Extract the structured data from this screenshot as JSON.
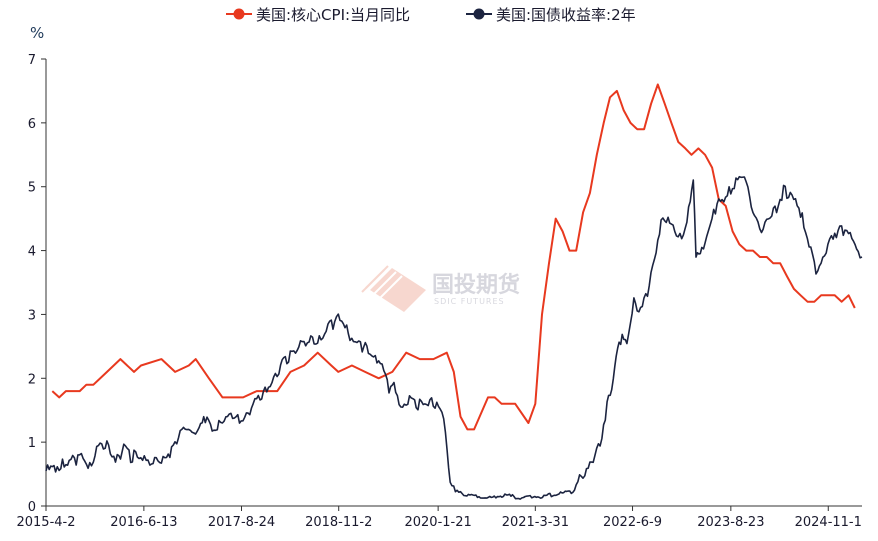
{
  "chart_data": {
    "type": "line",
    "ylabel": "%",
    "ylim": [
      0,
      7
    ],
    "yticks": [
      "0",
      "1",
      "2",
      "3",
      "4",
      "5",
      "6",
      "7"
    ],
    "xlim": [
      "2015-04-02",
      "2025-04-01"
    ],
    "xticks": [
      {
        "label": "2015-4-2",
        "date": "2015-04-02"
      },
      {
        "label": "2016-6-13",
        "date": "2016-06-13"
      },
      {
        "label": "2017-8-24",
        "date": "2017-08-24"
      },
      {
        "label": "2018-11-2",
        "date": "2018-11-02"
      },
      {
        "label": "2020-1-21",
        "date": "2020-01-21"
      },
      {
        "label": "2021-3-31",
        "date": "2021-03-31"
      },
      {
        "label": "2022-6-9",
        "date": "2022-06-09"
      },
      {
        "label": "2023-8-23",
        "date": "2023-08-23"
      },
      {
        "label": "2024-11-1",
        "date": "2024-11-01"
      }
    ],
    "legend_position": "top-center",
    "grid": false,
    "series": [
      {
        "name": "美国:核心CPI:当月同比",
        "color": "#e8391f",
        "points": [
          [
            "2015-04-30",
            1.8
          ],
          [
            "2015-05-31",
            1.7
          ],
          [
            "2015-06-30",
            1.8
          ],
          [
            "2015-08-31",
            1.8
          ],
          [
            "2015-09-30",
            1.9
          ],
          [
            "2015-10-31",
            1.9
          ],
          [
            "2015-12-31",
            2.1
          ],
          [
            "2016-02-29",
            2.3
          ],
          [
            "2016-04-30",
            2.1
          ],
          [
            "2016-05-31",
            2.2
          ],
          [
            "2016-08-31",
            2.3
          ],
          [
            "2016-10-31",
            2.1
          ],
          [
            "2016-12-31",
            2.2
          ],
          [
            "2017-01-31",
            2.3
          ],
          [
            "2017-03-31",
            2.0
          ],
          [
            "2017-05-31",
            1.7
          ],
          [
            "2017-08-31",
            1.7
          ],
          [
            "2017-10-31",
            1.8
          ],
          [
            "2017-12-31",
            1.8
          ],
          [
            "2018-01-31",
            1.8
          ],
          [
            "2018-03-31",
            2.1
          ],
          [
            "2018-05-31",
            2.2
          ],
          [
            "2018-07-31",
            2.4
          ],
          [
            "2018-09-30",
            2.2
          ],
          [
            "2018-10-31",
            2.1
          ],
          [
            "2018-12-31",
            2.2
          ],
          [
            "2019-02-28",
            2.1
          ],
          [
            "2019-04-30",
            2.0
          ],
          [
            "2019-06-30",
            2.1
          ],
          [
            "2019-08-31",
            2.4
          ],
          [
            "2019-10-31",
            2.3
          ],
          [
            "2019-12-31",
            2.3
          ],
          [
            "2020-02-29",
            2.4
          ],
          [
            "2020-03-31",
            2.1
          ],
          [
            "2020-04-30",
            1.4
          ],
          [
            "2020-05-31",
            1.2
          ],
          [
            "2020-06-30",
            1.2
          ],
          [
            "2020-08-31",
            1.7
          ],
          [
            "2020-09-30",
            1.7
          ],
          [
            "2020-10-31",
            1.6
          ],
          [
            "2020-12-31",
            1.6
          ],
          [
            "2021-02-28",
            1.3
          ],
          [
            "2021-03-31",
            1.6
          ],
          [
            "2021-04-30",
            3.0
          ],
          [
            "2021-05-31",
            3.8
          ],
          [
            "2021-06-30",
            4.5
          ],
          [
            "2021-07-31",
            4.3
          ],
          [
            "2021-08-31",
            4.0
          ],
          [
            "2021-09-30",
            4.0
          ],
          [
            "2021-10-31",
            4.6
          ],
          [
            "2021-11-30",
            4.9
          ],
          [
            "2021-12-31",
            5.5
          ],
          [
            "2022-01-31",
            6.0
          ],
          [
            "2022-02-28",
            6.4
          ],
          [
            "2022-03-31",
            6.5
          ],
          [
            "2022-04-30",
            6.2
          ],
          [
            "2022-05-31",
            6.0
          ],
          [
            "2022-06-30",
            5.9
          ],
          [
            "2022-07-31",
            5.9
          ],
          [
            "2022-08-31",
            6.3
          ],
          [
            "2022-09-30",
            6.6
          ],
          [
            "2022-10-31",
            6.3
          ],
          [
            "2022-11-30",
            6.0
          ],
          [
            "2022-12-31",
            5.7
          ],
          [
            "2023-01-31",
            5.6
          ],
          [
            "2023-02-28",
            5.5
          ],
          [
            "2023-03-31",
            5.6
          ],
          [
            "2023-04-30",
            5.5
          ],
          [
            "2023-05-31",
            5.3
          ],
          [
            "2023-06-30",
            4.8
          ],
          [
            "2023-07-31",
            4.7
          ],
          [
            "2023-08-31",
            4.3
          ],
          [
            "2023-09-30",
            4.1
          ],
          [
            "2023-10-31",
            4.0
          ],
          [
            "2023-11-30",
            4.0
          ],
          [
            "2023-12-31",
            3.9
          ],
          [
            "2024-01-31",
            3.9
          ],
          [
            "2024-02-29",
            3.8
          ],
          [
            "2024-03-31",
            3.8
          ],
          [
            "2024-04-30",
            3.6
          ],
          [
            "2024-05-31",
            3.4
          ],
          [
            "2024-06-30",
            3.3
          ],
          [
            "2024-07-31",
            3.2
          ],
          [
            "2024-08-31",
            3.2
          ],
          [
            "2024-09-30",
            3.3
          ],
          [
            "2024-10-31",
            3.3
          ],
          [
            "2024-11-30",
            3.3
          ],
          [
            "2024-12-31",
            3.2
          ],
          [
            "2025-01-31",
            3.3
          ],
          [
            "2025-02-28",
            3.1
          ]
        ]
      },
      {
        "name": "美国:国债收益率:2年",
        "color": "#1c2440",
        "points": [
          [
            "2015-04-02",
            0.55
          ],
          [
            "2015-05-15",
            0.6
          ],
          [
            "2015-06-15",
            0.68
          ],
          [
            "2015-07-15",
            0.7
          ],
          [
            "2015-08-15",
            0.72
          ],
          [
            "2015-09-15",
            0.78
          ],
          [
            "2015-10-15",
            0.62
          ],
          [
            "2015-11-15",
            0.85
          ],
          [
            "2015-12-15",
            0.98
          ],
          [
            "2016-01-15",
            0.88
          ],
          [
            "2016-02-15",
            0.72
          ],
          [
            "2016-03-15",
            0.92
          ],
          [
            "2016-04-15",
            0.75
          ],
          [
            "2016-05-15",
            0.82
          ],
          [
            "2016-06-15",
            0.75
          ],
          [
            "2016-07-10",
            0.6
          ],
          [
            "2016-08-15",
            0.72
          ],
          [
            "2016-09-15",
            0.78
          ],
          [
            "2016-10-15",
            0.85
          ],
          [
            "2016-11-15",
            1.05
          ],
          [
            "2016-12-15",
            1.22
          ],
          [
            "2017-01-15",
            1.2
          ],
          [
            "2017-02-15",
            1.2
          ],
          [
            "2017-03-15",
            1.35
          ],
          [
            "2017-04-15",
            1.22
          ],
          [
            "2017-05-15",
            1.3
          ],
          [
            "2017-06-15",
            1.35
          ],
          [
            "2017-07-15",
            1.38
          ],
          [
            "2017-08-15",
            1.33
          ],
          [
            "2017-09-15",
            1.42
          ],
          [
            "2017-10-15",
            1.58
          ],
          [
            "2017-11-15",
            1.72
          ],
          [
            "2017-12-15",
            1.85
          ],
          [
            "2018-01-15",
            2.0
          ],
          [
            "2018-02-15",
            2.2
          ],
          [
            "2018-03-15",
            2.3
          ],
          [
            "2018-04-15",
            2.45
          ],
          [
            "2018-05-15",
            2.52
          ],
          [
            "2018-06-15",
            2.55
          ],
          [
            "2018-07-15",
            2.62
          ],
          [
            "2018-08-15",
            2.62
          ],
          [
            "2018-09-15",
            2.78
          ],
          [
            "2018-10-15",
            2.88
          ],
          [
            "2018-11-08",
            2.96
          ],
          [
            "2018-12-15",
            2.72
          ],
          [
            "2019-01-15",
            2.55
          ],
          [
            "2019-02-15",
            2.5
          ],
          [
            "2019-03-15",
            2.45
          ],
          [
            "2019-04-15",
            2.35
          ],
          [
            "2019-05-15",
            2.2
          ],
          [
            "2019-06-15",
            1.85
          ],
          [
            "2019-07-15",
            1.85
          ],
          [
            "2019-08-15",
            1.5
          ],
          [
            "2019-09-15",
            1.72
          ],
          [
            "2019-10-15",
            1.58
          ],
          [
            "2019-11-15",
            1.62
          ],
          [
            "2019-12-15",
            1.62
          ],
          [
            "2020-01-15",
            1.58
          ],
          [
            "2020-02-15",
            1.42
          ],
          [
            "2020-03-01",
            0.95
          ],
          [
            "2020-03-15",
            0.35
          ],
          [
            "2020-04-15",
            0.22
          ],
          [
            "2020-05-15",
            0.17
          ],
          [
            "2020-07-15",
            0.15
          ],
          [
            "2020-09-15",
            0.13
          ],
          [
            "2020-11-15",
            0.17
          ],
          [
            "2021-01-15",
            0.13
          ],
          [
            "2021-03-15",
            0.15
          ],
          [
            "2021-05-15",
            0.15
          ],
          [
            "2021-07-15",
            0.2
          ],
          [
            "2021-09-15",
            0.22
          ],
          [
            "2021-10-15",
            0.45
          ],
          [
            "2021-11-15",
            0.55
          ],
          [
            "2021-12-15",
            0.7
          ],
          [
            "2022-01-15",
            1.0
          ],
          [
            "2022-02-15",
            1.55
          ],
          [
            "2022-03-15",
            1.95
          ],
          [
            "2022-04-10",
            2.6
          ],
          [
            "2022-05-15",
            2.6
          ],
          [
            "2022-06-15",
            3.2
          ],
          [
            "2022-07-15",
            3.05
          ],
          [
            "2022-08-15",
            3.3
          ],
          [
            "2022-09-15",
            3.9
          ],
          [
            "2022-10-15",
            4.45
          ],
          [
            "2022-11-15",
            4.45
          ],
          [
            "2022-12-15",
            4.3
          ],
          [
            "2023-01-15",
            4.2
          ],
          [
            "2023-02-15",
            4.6
          ],
          [
            "2023-03-08",
            5.05
          ],
          [
            "2023-03-20",
            3.95
          ],
          [
            "2023-04-15",
            4.05
          ],
          [
            "2023-05-15",
            4.3
          ],
          [
            "2023-06-15",
            4.65
          ],
          [
            "2023-07-15",
            4.8
          ],
          [
            "2023-08-15",
            4.95
          ],
          [
            "2023-09-15",
            5.05
          ],
          [
            "2023-10-15",
            5.15
          ],
          [
            "2023-11-15",
            4.85
          ],
          [
            "2023-12-15",
            4.45
          ],
          [
            "2024-01-15",
            4.3
          ],
          [
            "2024-02-15",
            4.55
          ],
          [
            "2024-03-15",
            4.65
          ],
          [
            "2024-04-15",
            4.95
          ],
          [
            "2024-05-15",
            4.85
          ],
          [
            "2024-06-15",
            4.75
          ],
          [
            "2024-07-15",
            4.45
          ],
          [
            "2024-08-15",
            4.0
          ],
          [
            "2024-09-15",
            3.6
          ],
          [
            "2024-10-15",
            3.95
          ],
          [
            "2024-11-15",
            4.25
          ],
          [
            "2024-12-15",
            4.3
          ],
          [
            "2025-01-15",
            4.3
          ],
          [
            "2025-02-15",
            4.2
          ],
          [
            "2025-03-15",
            4.0
          ],
          [
            "2025-04-01",
            3.9
          ]
        ]
      }
    ]
  },
  "watermark": {
    "title": "国投期货",
    "subtitle": "SDIC FUTURES",
    "color": "#e8391f"
  }
}
